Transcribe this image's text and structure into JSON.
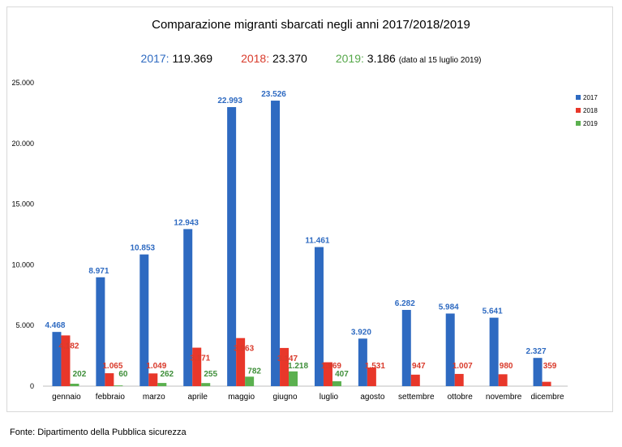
{
  "title": "Comparazione migranti sbarcati negli anni 2017/2018/2019",
  "totals": {
    "y2017_label": "2017:",
    "y2017_value": "119.369",
    "y2018_label": "2018:",
    "y2018_value": "23.370",
    "y2019_label": "2019:",
    "y2019_value": "3.186",
    "note": "(dato al 15 luglio 2019)"
  },
  "source": "Fonte: Dipartimento della Pubblica sicurezza",
  "colors": {
    "y2017": "#2e6ac1",
    "y2018": "#e8372a",
    "y2019": "#5bb04f"
  },
  "chart_data": {
    "type": "bar",
    "categories": [
      "gennaio",
      "febbraio",
      "marzo",
      "aprile",
      "maggio",
      "giugno",
      "luglio",
      "agosto",
      "settembre",
      "ottobre",
      "novembre",
      "dicembre"
    ],
    "series": [
      {
        "name": "2017",
        "values": [
          4468,
          8971,
          10853,
          12943,
          22993,
          23526,
          11461,
          3920,
          6282,
          5984,
          5641,
          2327
        ],
        "labels": [
          "4.468",
          "8.971",
          "10.853",
          "12.943",
          "22.993",
          "23.526",
          "11.461",
          "3.920",
          "6.282",
          "5.984",
          "5.641",
          "2.327"
        ]
      },
      {
        "name": "2018",
        "values": [
          4182,
          1065,
          1049,
          3171,
          3963,
          3147,
          1969,
          1531,
          947,
          1007,
          980,
          359
        ],
        "labels": [
          "4.182",
          "1.065",
          "1.049",
          "3.171",
          "3.963",
          "3.147",
          "1.969",
          "1.531",
          "947",
          "1.007",
          "980",
          "359"
        ]
      },
      {
        "name": "2019",
        "values": [
          202,
          60,
          262,
          255,
          782,
          1218,
          407,
          null,
          null,
          null,
          null,
          null
        ],
        "labels": [
          "202",
          "60",
          "262",
          "255",
          "782",
          "1.218",
          "407",
          "",
          "",
          "",
          "",
          ""
        ]
      }
    ],
    "ylim": [
      0,
      25000
    ],
    "yticks": [
      0,
      5000,
      10000,
      15000,
      20000,
      25000
    ],
    "ytick_labels": [
      "0",
      "5.000",
      "10.000",
      "15.000",
      "20.000",
      "25.000"
    ],
    "legend": "right",
    "grid": false
  }
}
